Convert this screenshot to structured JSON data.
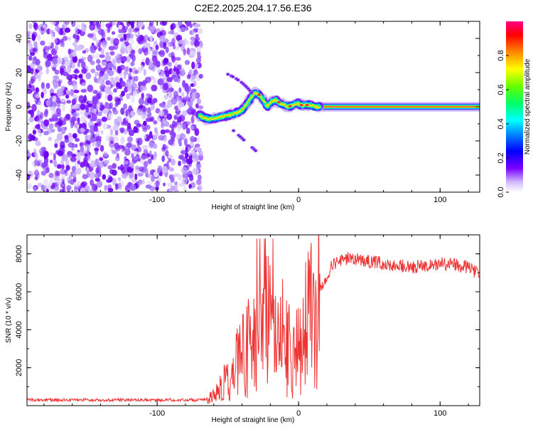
{
  "title": "C2E2.2025.204.17.56.E36",
  "chart_data": [
    {
      "type": "heatmap",
      "xlabel": "Height of straight line (km)",
      "ylabel": "Frequency (Hz)",
      "xlim": [
        -192,
        128
      ],
      "ylim": [
        -50,
        50
      ],
      "xticks": [
        -100,
        0,
        100
      ],
      "yticks": [
        -40,
        -20,
        0,
        20,
        40
      ],
      "noise_region_x": [
        -192,
        -69
      ],
      "ridge": {
        "x": [
          -70,
          -66,
          -60,
          -55,
          -50,
          -45,
          -40,
          -37,
          -34,
          -31,
          -28,
          -25,
          -22,
          -19,
          -16,
          -13,
          -10,
          -7,
          -4,
          -1,
          2,
          5,
          8,
          12,
          15,
          40,
          80,
          128
        ],
        "y": [
          -5,
          -7,
          -7,
          -6,
          -5,
          -4,
          -2,
          1,
          5,
          8,
          7,
          4,
          0,
          3,
          4,
          2,
          1,
          0,
          1,
          2,
          1,
          1,
          1,
          0,
          0,
          0,
          0,
          0
        ]
      },
      "branches": [
        {
          "x": [
            -50,
            -45,
            -40,
            -36,
            -32
          ],
          "y": [
            19,
            17,
            14,
            11,
            7
          ]
        },
        {
          "x": [
            -46,
            -42,
            -38,
            -34,
            -30
          ],
          "y": [
            -14,
            -17,
            -20,
            -23,
            -26
          ]
        }
      ],
      "colorbar": {
        "label": "Normalized spectral amplitude",
        "range": [
          0,
          1
        ],
        "ticks": [
          0.0,
          0.2,
          0.4,
          0.6,
          0.8
        ]
      }
    },
    {
      "type": "line",
      "xlabel": "Height of straight line (km)",
      "ylabel": "SNR (10 * v/v)",
      "xlim": [
        -192,
        128
      ],
      "ylim": [
        0,
        9000
      ],
      "xticks": [
        -100,
        0,
        100
      ],
      "yticks": [
        2000,
        4000,
        6000,
        8000
      ],
      "series": [
        {
          "color": "#ee3333",
          "x": [
            -192,
            -150,
            -100,
            -80,
            -70,
            -62,
            -56,
            -50,
            -44,
            -38,
            -32,
            -26,
            -22,
            -18,
            -14,
            -10,
            -6,
            -2,
            0,
            4,
            8,
            12,
            16,
            20,
            24,
            30,
            36,
            42,
            50,
            60,
            70,
            80,
            90,
            100,
            110,
            120,
            128
          ],
          "y": [
            300,
            300,
            300,
            300,
            300,
            400,
            800,
            1400,
            2200,
            2800,
            3200,
            4000,
            4800,
            4200,
            3800,
            3500,
            3200,
            3300,
            3800,
            4200,
            4600,
            5200,
            6200,
            6900,
            7400,
            7600,
            7800,
            7700,
            7600,
            7500,
            7400,
            7300,
            7400,
            7500,
            7400,
            7300,
            6900
          ]
        }
      ]
    }
  ]
}
